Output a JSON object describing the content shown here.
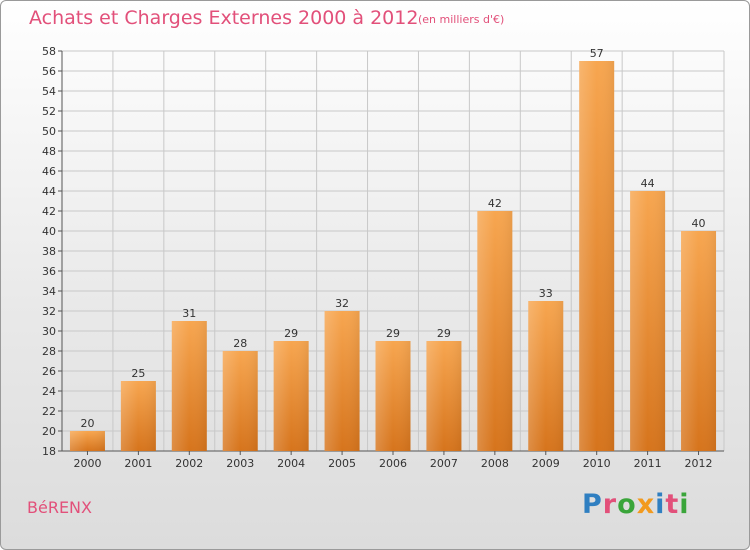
{
  "header": {
    "title": "Achats et Charges Externes 2000 à 2012",
    "unit": "(en milliers d'€)"
  },
  "footer": {
    "commune": "BéRENX",
    "logo_letters": [
      "P",
      "r",
      "o",
      "x",
      "i",
      "t",
      "i"
    ],
    "logo_colors": [
      "#2f7fc1",
      "#e2507a",
      "#3aa53a",
      "#f29a1e",
      "#2f7fc1",
      "#e2507a",
      "#3aa53a"
    ]
  },
  "colors": {
    "bar_top": "#f7a650",
    "bar_bottom": "#d6741c",
    "grid": "#c8c8c8",
    "text": "#e2507a"
  },
  "chart_data": {
    "type": "bar",
    "title": "Achats et Charges Externes 2000 à 2012",
    "subtitle": "(en milliers d'€)",
    "categories": [
      "2000",
      "2001",
      "2002",
      "2003",
      "2004",
      "2005",
      "2006",
      "2007",
      "2008",
      "2009",
      "2010",
      "2011",
      "2012"
    ],
    "values": [
      20,
      25,
      31,
      28,
      29,
      32,
      29,
      29,
      42,
      33,
      57,
      44,
      40
    ],
    "ylim": [
      18,
      58
    ],
    "yticks": [
      18,
      20,
      22,
      24,
      26,
      28,
      30,
      32,
      34,
      36,
      38,
      40,
      42,
      44,
      46,
      48,
      50,
      52,
      54,
      56,
      58
    ],
    "grid": true,
    "legend": "none"
  }
}
